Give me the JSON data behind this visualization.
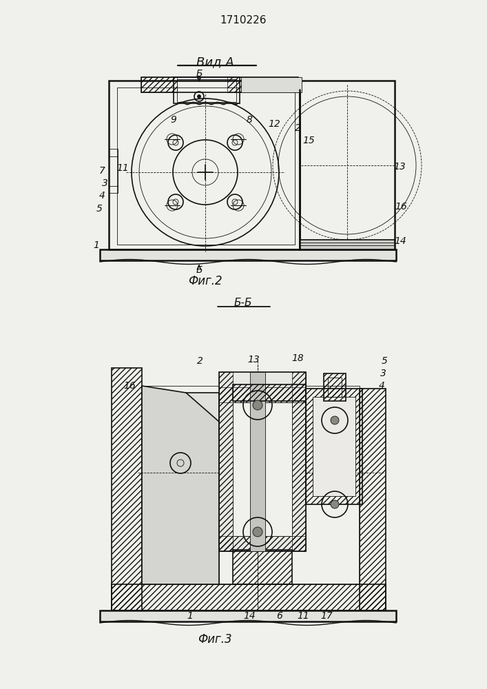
{
  "title": "1710226",
  "fig2_caption": "Фиг.2",
  "fig2_view": "Вид A",
  "fig3_caption": "Фиг.3",
  "fig3_section": "Б-Б",
  "section_mark": "Б",
  "bg_color": "#f0f0ec",
  "line_color": "#111111",
  "fig2_labels": [
    [
      "7",
      148,
      752
    ],
    [
      "11",
      178,
      756
    ],
    [
      "9",
      252,
      826
    ],
    [
      "8",
      362,
      826
    ],
    [
      "12",
      398,
      820
    ],
    [
      "2",
      432,
      814
    ],
    [
      "15",
      448,
      796
    ],
    [
      "13",
      580,
      758
    ],
    [
      "3",
      152,
      734
    ],
    [
      "4",
      148,
      716
    ],
    [
      "5",
      144,
      697
    ],
    [
      "16",
      582,
      700
    ],
    [
      "14",
      581,
      650
    ],
    [
      "1",
      140,
      644
    ]
  ],
  "fig3_labels": [
    [
      "2",
      290,
      476
    ],
    [
      "13",
      368,
      478
    ],
    [
      "18",
      432,
      480
    ],
    [
      "5",
      558,
      476
    ],
    [
      "3",
      556,
      458
    ],
    [
      "4",
      554,
      440
    ],
    [
      "16",
      188,
      440
    ],
    [
      "1",
      276,
      106
    ],
    [
      "14",
      362,
      106
    ],
    [
      "6",
      406,
      106
    ],
    [
      "11",
      440,
      106
    ],
    [
      "17",
      474,
      106
    ]
  ]
}
